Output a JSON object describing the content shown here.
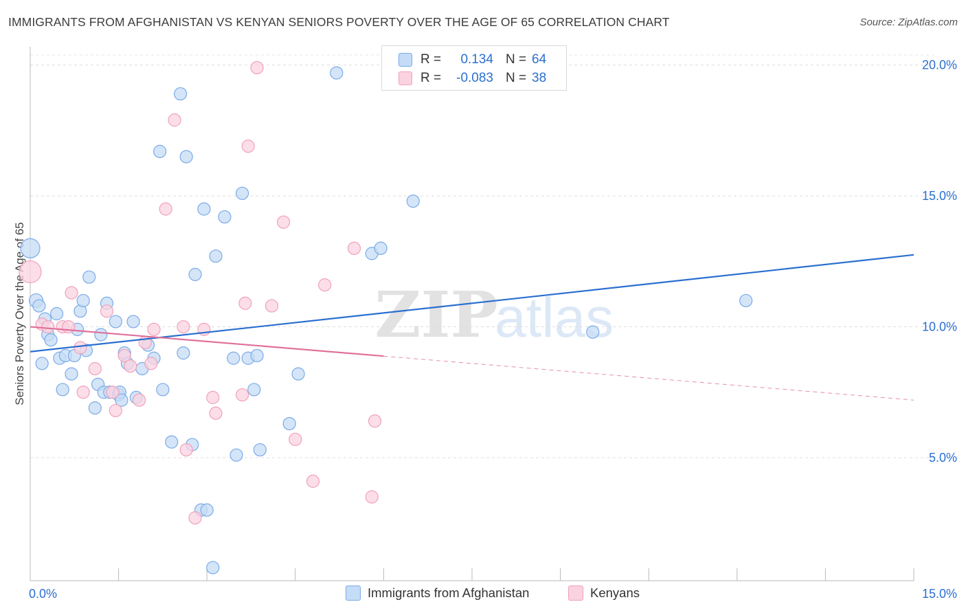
{
  "title": "IMMIGRANTS FROM AFGHANISTAN VS KENYAN SENIORS POVERTY OVER THE AGE OF 65 CORRELATION CHART",
  "source": "Source: ZipAtlas.com",
  "watermark": {
    "zip": "ZIP",
    "atlas": "atlas"
  },
  "stats": [
    {
      "r_label": "R =",
      "r_value": "0.134",
      "n_label": "N =",
      "n_value": "64",
      "color": "#7aaae8",
      "fill": "#c5dcf6"
    },
    {
      "r_label": "R =",
      "r_value": "-0.083",
      "n_label": "N =",
      "n_value": "38",
      "color": "#f0a0bb",
      "fill": "#fbd3e0"
    }
  ],
  "legend": [
    {
      "label": "Immigrants from Afghanistan",
      "color": "#7aaae8",
      "fill": "#c5dcf6"
    },
    {
      "label": "Kenyans",
      "color": "#f0a0bb",
      "fill": "#fbd3e0"
    }
  ],
  "chart_data": {
    "type": "scatter",
    "title": "IMMIGRANTS FROM AFGHANISTAN VS KENYAN SENIORS POVERTY OVER THE AGE OF 65 CORRELATION CHART",
    "xlabel": "",
    "ylabel": "Seniors Poverty Over the Age of 65",
    "xlim": [
      0,
      15
    ],
    "ylim": [
      0.3,
      20.7
    ],
    "x_ticks": [
      0,
      1.5,
      3,
      4.5,
      6,
      7.5,
      9,
      10.5,
      12,
      13.5,
      15
    ],
    "x_tick_labels": [
      {
        "value": 0,
        "label": "0.0%"
      },
      {
        "value": 15,
        "label": "15.0%"
      }
    ],
    "y_ticks": [
      5,
      10,
      15,
      20
    ],
    "y_tick_labels": [
      "5.0%",
      "10.0%",
      "15.0%",
      "20.0%"
    ],
    "grid": true,
    "legend_position": "bottom",
    "series": [
      {
        "name": "Immigrants from Afghanistan",
        "color": "#2a6fd0",
        "fill": "#c5dcf6",
        "edge": "#7aaae8",
        "points": [
          [
            0.0,
            13.0,
            14
          ],
          [
            0.1,
            11.0,
            10
          ],
          [
            0.15,
            10.8,
            9
          ],
          [
            0.2,
            8.6,
            9
          ],
          [
            0.25,
            10.3,
            9
          ],
          [
            0.3,
            9.7,
            9
          ],
          [
            0.35,
            9.5,
            9
          ],
          [
            0.45,
            10.5,
            9
          ],
          [
            0.5,
            8.8,
            9
          ],
          [
            0.55,
            7.6,
            9
          ],
          [
            0.6,
            8.9,
            9
          ],
          [
            0.7,
            8.2,
            9
          ],
          [
            0.75,
            8.9,
            9
          ],
          [
            0.8,
            9.9,
            9
          ],
          [
            0.85,
            10.6,
            9
          ],
          [
            0.9,
            11.0,
            9
          ],
          [
            0.95,
            9.1,
            9
          ],
          [
            1.0,
            11.9,
            9
          ],
          [
            1.1,
            6.9,
            9
          ],
          [
            1.15,
            7.8,
            9
          ],
          [
            1.2,
            9.7,
            9
          ],
          [
            1.25,
            7.5,
            9
          ],
          [
            1.3,
            10.9,
            9
          ],
          [
            1.35,
            7.5,
            9
          ],
          [
            1.45,
            10.2,
            9
          ],
          [
            1.5,
            7.4,
            9
          ],
          [
            1.52,
            7.5,
            9
          ],
          [
            1.55,
            7.2,
            9
          ],
          [
            1.6,
            9.0,
            9
          ],
          [
            1.65,
            8.6,
            9
          ],
          [
            1.75,
            10.2,
            9
          ],
          [
            1.8,
            7.3,
            9
          ],
          [
            1.9,
            8.4,
            9
          ],
          [
            2.0,
            9.3,
            9
          ],
          [
            2.1,
            8.8,
            9
          ],
          [
            2.2,
            16.7,
            9
          ],
          [
            2.25,
            7.6,
            9
          ],
          [
            2.4,
            5.6,
            9
          ],
          [
            2.55,
            18.9,
            9
          ],
          [
            2.6,
            9.0,
            9
          ],
          [
            2.65,
            16.5,
            9
          ],
          [
            2.75,
            5.5,
            9
          ],
          [
            2.8,
            12.0,
            9
          ],
          [
            2.9,
            3.0,
            9
          ],
          [
            3.0,
            3.0,
            9
          ],
          [
            2.95,
            14.5,
            9
          ],
          [
            3.1,
            0.8,
            9
          ],
          [
            3.15,
            12.7,
            9
          ],
          [
            3.3,
            14.2,
            9
          ],
          [
            3.45,
            8.8,
            9
          ],
          [
            3.5,
            5.1,
            9
          ],
          [
            3.6,
            15.1,
            9
          ],
          [
            3.7,
            8.8,
            9
          ],
          [
            3.8,
            7.6,
            9
          ],
          [
            3.85,
            8.9,
            9
          ],
          [
            3.9,
            5.3,
            9
          ],
          [
            4.4,
            6.3,
            9
          ],
          [
            4.55,
            8.2,
            9
          ],
          [
            5.2,
            19.7,
            9
          ],
          [
            5.8,
            12.8,
            9
          ],
          [
            5.95,
            13.0,
            9
          ],
          [
            6.5,
            14.8,
            9
          ],
          [
            9.55,
            9.8,
            9
          ],
          [
            12.15,
            11.0,
            9
          ]
        ],
        "trend": {
          "x": [
            0,
            15
          ],
          "y": [
            9.05,
            12.75
          ],
          "dashed_from": null
        }
      },
      {
        "name": "Kenyans",
        "color": "#e0709a",
        "fill": "#fbd3e0",
        "edge": "#f0a0bb",
        "points": [
          [
            0.0,
            12.1,
            16
          ],
          [
            0.2,
            10.1,
            9
          ],
          [
            0.3,
            10.0,
            9
          ],
          [
            0.55,
            10.0,
            9
          ],
          [
            0.65,
            10.0,
            9
          ],
          [
            0.7,
            11.3,
            9
          ],
          [
            0.85,
            9.2,
            9
          ],
          [
            0.9,
            7.5,
            9
          ],
          [
            1.1,
            8.4,
            9
          ],
          [
            1.3,
            10.6,
            9
          ],
          [
            1.4,
            7.5,
            9
          ],
          [
            1.45,
            6.8,
            9
          ],
          [
            1.6,
            8.9,
            9
          ],
          [
            1.7,
            8.5,
            9
          ],
          [
            1.85,
            7.2,
            9
          ],
          [
            1.95,
            9.4,
            9
          ],
          [
            2.05,
            8.6,
            9
          ],
          [
            2.1,
            9.9,
            9
          ],
          [
            2.3,
            14.5,
            9
          ],
          [
            2.45,
            17.9,
            9
          ],
          [
            2.6,
            10.0,
            9
          ],
          [
            2.65,
            5.3,
            9
          ],
          [
            2.8,
            2.7,
            9
          ],
          [
            2.95,
            9.9,
            9
          ],
          [
            3.1,
            7.3,
            9
          ],
          [
            3.15,
            6.7,
            9
          ],
          [
            3.6,
            7.4,
            9
          ],
          [
            3.65,
            10.9,
            9
          ],
          [
            3.7,
            16.9,
            9
          ],
          [
            3.85,
            19.9,
            9
          ],
          [
            4.1,
            10.8,
            9
          ],
          [
            4.3,
            14.0,
            9
          ],
          [
            4.5,
            5.7,
            9
          ],
          [
            4.8,
            4.1,
            9
          ],
          [
            5.0,
            11.6,
            9
          ],
          [
            5.5,
            13.0,
            9
          ],
          [
            5.8,
            3.5,
            9
          ],
          [
            5.85,
            6.4,
            9
          ]
        ],
        "trend": {
          "x": [
            0,
            15
          ],
          "y": [
            10.0,
            7.2
          ],
          "dashed_from": 6.0
        }
      }
    ]
  }
}
